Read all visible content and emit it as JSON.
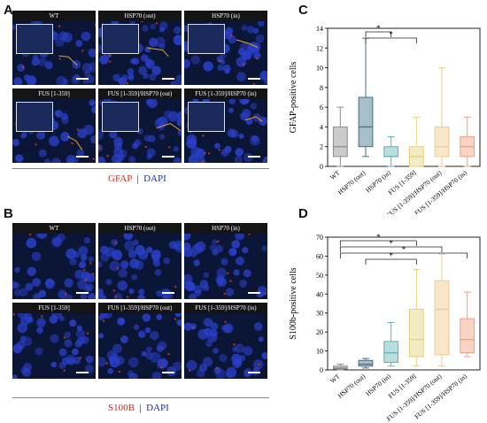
{
  "panels": {
    "A": {
      "letter": "A",
      "images": [
        {
          "caption": "WT",
          "inset": true
        },
        {
          "caption": "HSP70 (out)",
          "inset": true
        },
        {
          "caption": "HSP70 (in)",
          "inset": true
        },
        {
          "caption": "FUS [1-359]",
          "inset": true
        },
        {
          "caption": "FUS [1-359]/HSP70 (out)",
          "inset": true
        },
        {
          "caption": "FUS [1-359]/HSP70 (in)",
          "inset": true
        }
      ],
      "stain_red": "GFAP",
      "stain_blue": "DAPI"
    },
    "B": {
      "letter": "B",
      "images": [
        {
          "caption": "WT",
          "inset": false
        },
        {
          "caption": "HSP70 (out)",
          "inset": false
        },
        {
          "caption": "HSP70 (in)",
          "inset": false
        },
        {
          "caption": "FUS [1-359]",
          "inset": false
        },
        {
          "caption": "FUS [1-359]/HSP70 (out)",
          "inset": false
        },
        {
          "caption": "FUS [1-359]/HSP70 (in)",
          "inset": false
        }
      ],
      "stain_red": "S100B",
      "stain_blue": "DAPI"
    },
    "C": {
      "letter": "C"
    },
    "D": {
      "letter": "D"
    }
  },
  "colors": {
    "red_stain": "#d02a1e",
    "blue_stain": "#1c2fb0",
    "micro_bg": "#0b1636"
  },
  "chart_data": [
    {
      "type": "box",
      "panel": "C",
      "ylabel": "GFAP-positive cells",
      "ylim": [
        0,
        14
      ],
      "yticks": [
        0,
        2,
        4,
        6,
        8,
        10,
        12,
        14
      ],
      "categories": [
        "WT",
        "HSP70 (out)",
        "HSP70 (in)",
        "FUS [1-359]",
        "FUS [1-359]/HSP70 (out)",
        "FUS [1-359]/HSP70 (in)"
      ],
      "colors": [
        "#8c8c8c",
        "#3f7289",
        "#5fb3b5",
        "#e3d27a",
        "#f2c98a",
        "#f1a07d"
      ],
      "boxes": [
        {
          "min": 0,
          "q1": 1,
          "median": 2,
          "q3": 4,
          "max": 6
        },
        {
          "min": 1,
          "q1": 2,
          "median": 4,
          "q3": 7,
          "max": 13
        },
        {
          "min": 0,
          "q1": 1,
          "median": 1,
          "q3": 2,
          "max": 3
        },
        {
          "min": 0,
          "q1": 0,
          "median": 1,
          "q3": 2,
          "max": 5
        },
        {
          "min": 0,
          "q1": 1,
          "median": 2,
          "q3": 4,
          "max": 10
        },
        {
          "min": 0,
          "q1": 1,
          "median": 2,
          "q3": 3,
          "max": 5
        }
      ],
      "significance": [
        {
          "from": 1,
          "to": 2,
          "label": "*"
        },
        {
          "from": 1,
          "to": 3,
          "label": "*"
        }
      ]
    },
    {
      "type": "box",
      "panel": "D",
      "ylabel": "S100b-positive cells",
      "ylim": [
        0,
        70
      ],
      "yticks": [
        0,
        10,
        20,
        30,
        40,
        50,
        60,
        70
      ],
      "categories": [
        "WT",
        "HSP70 (out)",
        "HSP70 (in)",
        "FUS [1-359]",
        "FUS [1-359]/HSP70 (out)",
        "FUS [1-359]/HSP70 (in)"
      ],
      "colors": [
        "#8c8c8c",
        "#3f7289",
        "#5fb3b5",
        "#e3d27a",
        "#f2c98a",
        "#f1a07d"
      ],
      "boxes": [
        {
          "min": 0,
          "q1": 0.5,
          "median": 1,
          "q3": 2,
          "max": 3
        },
        {
          "min": 1,
          "q1": 2,
          "median": 3,
          "q3": 5,
          "max": 6
        },
        {
          "min": 2,
          "q1": 4,
          "median": 9,
          "q3": 15,
          "max": 25
        },
        {
          "min": 2,
          "q1": 7,
          "median": 16,
          "q3": 32,
          "max": 53
        },
        {
          "min": 2,
          "q1": 8,
          "median": 32,
          "q3": 47,
          "max": 61
        },
        {
          "min": 7,
          "q1": 9,
          "median": 16,
          "q3": 27,
          "max": 41
        }
      ],
      "significance": [
        {
          "from": 0,
          "to": 3,
          "label": "*"
        },
        {
          "from": 0,
          "to": 4,
          "label": "*"
        },
        {
          "from": 0,
          "to": 5,
          "label": "*"
        },
        {
          "from": 1,
          "to": 3,
          "label": "*"
        }
      ]
    }
  ]
}
